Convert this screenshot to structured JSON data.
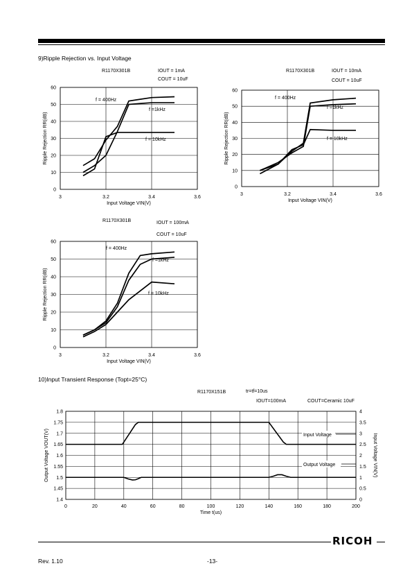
{
  "section9_title": "9)Ripple Rejection vs. Input Voltage",
  "section10_title": "10)Input Transient Response (Topt=25°C)",
  "brand": "RICOH",
  "footer_rev": "Rev. 1.10",
  "footer_page": "-13-",
  "chart_data": [
    {
      "type": "line",
      "cond": [
        "R1170X301B",
        "IOUT = 1mA",
        "COUT = 10uF"
      ],
      "xlabel": "Input Voltage VIN(V)",
      "ylabel": "Ripple Rejection RR(dB)",
      "xlim": [
        3,
        3.6
      ],
      "ylim": [
        0,
        60
      ],
      "xticks": [
        "3",
        "3.2",
        "3.4",
        "3.6"
      ],
      "yticks": [
        "0",
        "10",
        "20",
        "30",
        "40",
        "50",
        "60"
      ],
      "series": [
        {
          "name": "f = 400Hz",
          "x": [
            3.1,
            3.15,
            3.2,
            3.25,
            3.3,
            3.35,
            3.4,
            3.5
          ],
          "y": [
            14,
            18,
            29,
            37,
            52,
            53,
            54,
            54.5
          ]
        },
        {
          "name": "f =1kHz",
          "x": [
            3.1,
            3.15,
            3.2,
            3.25,
            3.3,
            3.35,
            3.4,
            3.5
          ],
          "y": [
            10,
            14,
            20,
            34,
            50,
            50.5,
            51,
            51
          ]
        },
        {
          "name": "f = 10kHz",
          "x": [
            3.1,
            3.15,
            3.2,
            3.25,
            3.3,
            3.35,
            3.4,
            3.5
          ],
          "y": [
            8,
            12,
            31,
            33.5,
            33.5,
            33.5,
            33.5,
            33.5
          ]
        }
      ]
    },
    {
      "type": "line",
      "cond": [
        "R1170X301B",
        "IOUT = 10mA",
        "COUT = 10uF"
      ],
      "xlabel": "Input Voltage VIN(V)",
      "ylabel": "Ripple Rejection RR(dB)",
      "xlim": [
        3,
        3.6
      ],
      "ylim": [
        0,
        60
      ],
      "xticks": [
        "3",
        "3.2",
        "3.4",
        "3.6"
      ],
      "yticks": [
        "0",
        "10",
        "20",
        "30",
        "40",
        "50",
        "60"
      ],
      "series": [
        {
          "name": "f = 400Hz",
          "x": [
            3.08,
            3.16,
            3.22,
            3.27,
            3.3,
            3.4,
            3.5
          ],
          "y": [
            10,
            14,
            22,
            27,
            52,
            54,
            55
          ]
        },
        {
          "name": "f =1kHz",
          "x": [
            3.08,
            3.16,
            3.22,
            3.27,
            3.3,
            3.4,
            3.5
          ],
          "y": [
            10,
            15,
            21,
            25,
            50,
            51,
            51.5
          ]
        },
        {
          "name": "f = 10kHz",
          "x": [
            3.08,
            3.16,
            3.22,
            3.27,
            3.3,
            3.4,
            3.5
          ],
          "y": [
            8,
            14,
            23,
            26,
            35.5,
            35,
            35
          ]
        }
      ]
    },
    {
      "type": "line",
      "cond": [
        "R1170X301B",
        "IOUT = 100mA",
        "COUT = 10uF"
      ],
      "xlabel": "Input Voltage VIN(V)",
      "ylabel": "Ripple Rejection RR(dB)",
      "xlim": [
        3,
        3.6
      ],
      "ylim": [
        0,
        60
      ],
      "xticks": [
        "3",
        "3.2",
        "3.4",
        "3.6"
      ],
      "yticks": [
        "0",
        "10",
        "20",
        "30",
        "40",
        "50",
        "60"
      ],
      "series": [
        {
          "name": "f = 400Hz",
          "x": [
            3.1,
            3.15,
            3.2,
            3.25,
            3.3,
            3.35,
            3.4,
            3.5
          ],
          "y": [
            7,
            10,
            15,
            25,
            42,
            52,
            53,
            54
          ]
        },
        {
          "name": "f =1kHz",
          "x": [
            3.1,
            3.15,
            3.2,
            3.25,
            3.3,
            3.35,
            3.4,
            3.5
          ],
          "y": [
            7,
            10,
            14,
            23,
            38,
            47,
            50,
            51
          ]
        },
        {
          "name": "f = 10kHz",
          "x": [
            3.1,
            3.15,
            3.2,
            3.25,
            3.3,
            3.35,
            3.4,
            3.5
          ],
          "y": [
            6,
            9,
            13,
            20,
            27,
            32,
            37,
            36
          ]
        }
      ]
    },
    {
      "type": "line",
      "cond": [
        "R1170X151B",
        "tr=tf=10us",
        "IOUT=100mA",
        "COUT=Ceramic 10uF"
      ],
      "xlabel": "Time t(us)",
      "ylabel": "Output Voltage VOUT(V)",
      "ylabel_right": "Input Voltage VIN(V)",
      "xlim": [
        0,
        200
      ],
      "ylim": [
        1.4,
        1.8
      ],
      "ylim_right": [
        0,
        4
      ],
      "xticks": [
        "0",
        "20",
        "40",
        "60",
        "80",
        "100",
        "120",
        "140",
        "160",
        "180",
        "200"
      ],
      "yticks": [
        "1.4",
        "1.45",
        "1.5",
        "1.55",
        "1.6",
        "1.65",
        "1.7",
        "1.75",
        "1.8"
      ],
      "yticks_right": [
        "0",
        "0.5",
        "1",
        "1.5",
        "2",
        "2.5",
        "3",
        "3.5",
        "4"
      ],
      "series": [
        {
          "name": "Input Voltage",
          "axis": "right",
          "x": [
            0,
            39,
            48,
            50,
            140,
            150,
            152,
            200
          ],
          "y": [
            2.5,
            2.5,
            3.4,
            3.5,
            3.5,
            2.6,
            2.5,
            2.5
          ]
        },
        {
          "name": "Output Voltage",
          "axis": "left",
          "x": [
            0,
            40,
            43,
            46,
            48,
            50,
            52,
            60,
            100,
            140,
            143,
            146,
            149,
            152,
            155,
            200
          ],
          "y": [
            1.5,
            1.5,
            1.493,
            1.488,
            1.489,
            1.494,
            1.5,
            1.5,
            1.5,
            1.5,
            1.505,
            1.512,
            1.512,
            1.505,
            1.5,
            1.5
          ]
        }
      ]
    }
  ]
}
